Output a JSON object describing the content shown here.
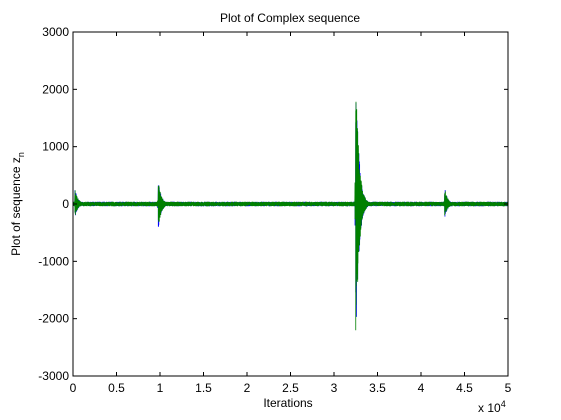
{
  "chart_data": {
    "type": "line",
    "title": "Plot of Complex sequence",
    "xlabel": "Iterations",
    "ylabel_main": "Plot of sequence z",
    "ylabel_subscript": "n",
    "x_multiplier_base": "x 10",
    "x_multiplier_exp": "4",
    "xlim": [
      0,
      5
    ],
    "ylim": [
      -3000,
      3000
    ],
    "x_ticks": [
      0,
      0.5,
      1,
      1.5,
      2,
      2.5,
      3,
      3.5,
      4,
      4.5,
      5
    ],
    "x_tick_labels": [
      "0",
      "0.5",
      "1",
      "1.5",
      "2",
      "2.5",
      "3",
      "3.5",
      "4",
      "4.5",
      "5"
    ],
    "y_ticks": [
      -3000,
      -2000,
      -1000,
      0,
      1000,
      2000,
      3000
    ],
    "y_tick_labels": [
      "-3000",
      "-2000",
      "-1000",
      "0",
      "1000",
      "2000",
      "3000"
    ],
    "grid": false,
    "series": [
      {
        "color": "#0000ff",
        "baseline_amplitude": 40,
        "spikes": [
          {
            "x": 0.02,
            "min": -250,
            "max": 300
          },
          {
            "x": 0.98,
            "min": -450,
            "max": 430
          },
          {
            "x": 3.25,
            "min": -2550,
            "max": 2500
          },
          {
            "x": 4.27,
            "min": -260,
            "max": 310
          }
        ]
      },
      {
        "color": "#008000",
        "baseline_amplitude": 40,
        "spikes": [
          {
            "x": 0.02,
            "min": -240,
            "max": 290
          },
          {
            "x": 0.98,
            "min": -440,
            "max": 420
          },
          {
            "x": 3.25,
            "min": -2580,
            "max": 2500
          },
          {
            "x": 4.27,
            "min": -250,
            "max": 300
          }
        ]
      }
    ]
  }
}
